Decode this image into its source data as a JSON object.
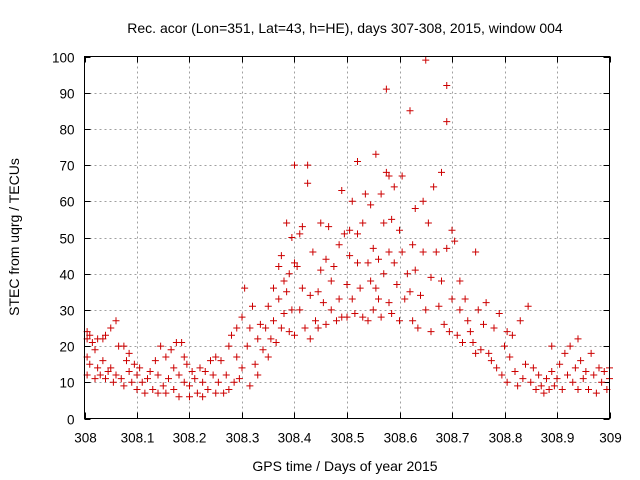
{
  "chart_data": {
    "type": "scatter",
    "title": "Rec. acor (Lon=351, Lat=43, h=HE), days 307-308, 2015, window 004",
    "xlabel": "GPS time / Days of year 2015",
    "ylabel": "STEC from uqrg / TECUs",
    "xlim": [
      308,
      309
    ],
    "ylim": [
      0,
      100
    ],
    "x_ticks": [
      308,
      308.1,
      308.2,
      308.3,
      308.4,
      308.5,
      308.6,
      308.7,
      308.8,
      308.9,
      309
    ],
    "x_tick_labels": [
      "308",
      "308.1",
      "308.2",
      "308.3",
      "308.4",
      "308.5",
      "308.6",
      "308.7",
      "308.8",
      "308.9",
      "309"
    ],
    "y_ticks": [
      0,
      10,
      20,
      30,
      40,
      50,
      60,
      70,
      80,
      90,
      100
    ],
    "y_tick_labels": [
      "0",
      "10",
      "20",
      "30",
      "40",
      "50",
      "60",
      "70",
      "80",
      "90",
      "100"
    ],
    "grid": true,
    "marker": "plus",
    "color": "#cc0000",
    "series": [
      {
        "name": "STEC",
        "points": [
          [
            308.005,
            24
          ],
          [
            308.005,
            22
          ],
          [
            308.005,
            17
          ],
          [
            308.005,
            12
          ],
          [
            308.01,
            23
          ],
          [
            308.01,
            15
          ],
          [
            308.015,
            21
          ],
          [
            308.02,
            19
          ],
          [
            308.02,
            11
          ],
          [
            308.025,
            22
          ],
          [
            308.025,
            14
          ],
          [
            308.03,
            12
          ],
          [
            308.035,
            22
          ],
          [
            308.035,
            16
          ],
          [
            308.04,
            23
          ],
          [
            308.04,
            11
          ],
          [
            308.045,
            13
          ],
          [
            308.05,
            25
          ],
          [
            308.05,
            14
          ],
          [
            308.055,
            10
          ],
          [
            308.06,
            27
          ],
          [
            308.06,
            12
          ],
          [
            308.065,
            20
          ],
          [
            308.07,
            11
          ],
          [
            308.075,
            20
          ],
          [
            308.075,
            9
          ],
          [
            308.08,
            16
          ],
          [
            308.085,
            18
          ],
          [
            308.085,
            13
          ],
          [
            308.09,
            10
          ],
          [
            308.095,
            15
          ],
          [
            308.1,
            12
          ],
          [
            308.1,
            8
          ],
          [
            308.105,
            14
          ],
          [
            308.11,
            10
          ],
          [
            308.115,
            7
          ],
          [
            308.12,
            11
          ],
          [
            308.125,
            13
          ],
          [
            308.13,
            8
          ],
          [
            308.135,
            16
          ],
          [
            308.14,
            12
          ],
          [
            308.14,
            7
          ],
          [
            308.145,
            20
          ],
          [
            308.15,
            9
          ],
          [
            308.155,
            17
          ],
          [
            308.155,
            7
          ],
          [
            308.16,
            11
          ],
          [
            308.165,
            19
          ],
          [
            308.17,
            14
          ],
          [
            308.17,
            8
          ],
          [
            308.175,
            21
          ],
          [
            308.18,
            12
          ],
          [
            308.18,
            6
          ],
          [
            308.185,
            21
          ],
          [
            308.19,
            17
          ],
          [
            308.19,
            10
          ],
          [
            308.195,
            15
          ],
          [
            308.2,
            9
          ],
          [
            308.2,
            6
          ],
          [
            308.205,
            13
          ],
          [
            308.21,
            11
          ],
          [
            308.215,
            7
          ],
          [
            308.22,
            14
          ],
          [
            308.225,
            10
          ],
          [
            308.225,
            6
          ],
          [
            308.23,
            13
          ],
          [
            308.235,
            8
          ],
          [
            308.24,
            16
          ],
          [
            308.245,
            12
          ],
          [
            308.25,
            7
          ],
          [
            308.25,
            17
          ],
          [
            308.255,
            10
          ],
          [
            308.26,
            16
          ],
          [
            308.265,
            7
          ],
          [
            308.27,
            12
          ],
          [
            308.275,
            20
          ],
          [
            308.275,
            8
          ],
          [
            308.28,
            23
          ],
          [
            308.285,
            10
          ],
          [
            308.29,
            25
          ],
          [
            308.29,
            17
          ],
          [
            308.295,
            11
          ],
          [
            308.3,
            28
          ],
          [
            308.3,
            14
          ],
          [
            308.305,
            36
          ],
          [
            308.31,
            20
          ],
          [
            308.315,
            9
          ],
          [
            308.315,
            25
          ],
          [
            308.32,
            31
          ],
          [
            308.325,
            15
          ],
          [
            308.33,
            22
          ],
          [
            308.33,
            12
          ],
          [
            308.335,
            26
          ],
          [
            308.34,
            19
          ],
          [
            308.345,
            25
          ],
          [
            308.35,
            17
          ],
          [
            308.35,
            31
          ],
          [
            308.355,
            22
          ],
          [
            308.36,
            36
          ],
          [
            308.36,
            27
          ],
          [
            308.365,
            21
          ],
          [
            308.37,
            42
          ],
          [
            308.37,
            33
          ],
          [
            308.375,
            45
          ],
          [
            308.375,
            25
          ],
          [
            308.38,
            38
          ],
          [
            308.38,
            29
          ],
          [
            308.385,
            54
          ],
          [
            308.385,
            35
          ],
          [
            308.39,
            40
          ],
          [
            308.39,
            24
          ],
          [
            308.395,
            50
          ],
          [
            308.395,
            30
          ],
          [
            308.4,
            70
          ],
          [
            308.4,
            43
          ],
          [
            308.4,
            23
          ],
          [
            308.405,
            42
          ],
          [
            308.41,
            51
          ],
          [
            308.41,
            30
          ],
          [
            308.415,
            53
          ],
          [
            308.415,
            36
          ],
          [
            308.42,
            25
          ],
          [
            308.425,
            70
          ],
          [
            308.425,
            65
          ],
          [
            308.43,
            34
          ],
          [
            308.43,
            22
          ],
          [
            308.435,
            46
          ],
          [
            308.44,
            27
          ],
          [
            308.445,
            35
          ],
          [
            308.445,
            25
          ],
          [
            308.45,
            54
          ],
          [
            308.45,
            41
          ],
          [
            308.455,
            32
          ],
          [
            308.46,
            44
          ],
          [
            308.46,
            26
          ],
          [
            308.465,
            53
          ],
          [
            308.47,
            30
          ],
          [
            308.47,
            38
          ],
          [
            308.475,
            42
          ],
          [
            308.48,
            27
          ],
          [
            308.485,
            48
          ],
          [
            308.485,
            33
          ],
          [
            308.49,
            63
          ],
          [
            308.49,
            28
          ],
          [
            308.495,
            51
          ],
          [
            308.5,
            37
          ],
          [
            308.5,
            28
          ],
          [
            308.505,
            52
          ],
          [
            308.505,
            45
          ],
          [
            308.51,
            60
          ],
          [
            308.51,
            33
          ],
          [
            308.515,
            29
          ],
          [
            308.52,
            71
          ],
          [
            308.52,
            51
          ],
          [
            308.52,
            43
          ],
          [
            308.525,
            36
          ],
          [
            308.53,
            54
          ],
          [
            308.53,
            28
          ],
          [
            308.535,
            62
          ],
          [
            308.54,
            43
          ],
          [
            308.54,
            27
          ],
          [
            308.545,
            59
          ],
          [
            308.545,
            38
          ],
          [
            308.55,
            47
          ],
          [
            308.55,
            30
          ],
          [
            308.555,
            73
          ],
          [
            308.555,
            36
          ],
          [
            308.56,
            44
          ],
          [
            308.56,
            33
          ],
          [
            308.565,
            62
          ],
          [
            308.565,
            28
          ],
          [
            308.57,
            54
          ],
          [
            308.57,
            40
          ],
          [
            308.575,
            91
          ],
          [
            308.575,
            68
          ],
          [
            308.58,
            67
          ],
          [
            308.58,
            46
          ],
          [
            308.58,
            32
          ],
          [
            308.585,
            55
          ],
          [
            308.585,
            29
          ],
          [
            308.59,
            64
          ],
          [
            308.59,
            43
          ],
          [
            308.595,
            37
          ],
          [
            308.6,
            52
          ],
          [
            308.6,
            27
          ],
          [
            308.605,
            67
          ],
          [
            308.605,
            46
          ],
          [
            308.61,
            33
          ],
          [
            308.615,
            40
          ],
          [
            308.62,
            85
          ],
          [
            308.62,
            35
          ],
          [
            308.625,
            48
          ],
          [
            308.625,
            27
          ],
          [
            308.63,
            58
          ],
          [
            308.63,
            41
          ],
          [
            308.635,
            25
          ],
          [
            308.64,
            34
          ],
          [
            308.645,
            60
          ],
          [
            308.645,
            46
          ],
          [
            308.65,
            99
          ],
          [
            308.65,
            30
          ],
          [
            308.655,
            54
          ],
          [
            308.66,
            39
          ],
          [
            308.66,
            24
          ],
          [
            308.665,
            64
          ],
          [
            308.67,
            46
          ],
          [
            308.675,
            31
          ],
          [
            308.68,
            68
          ],
          [
            308.68,
            38
          ],
          [
            308.685,
            26
          ],
          [
            308.69,
            92
          ],
          [
            308.69,
            82
          ],
          [
            308.69,
            47
          ],
          [
            308.695,
            24
          ],
          [
            308.7,
            52
          ],
          [
            308.7,
            33
          ],
          [
            308.705,
            49
          ],
          [
            308.71,
            23
          ],
          [
            308.715,
            38
          ],
          [
            308.715,
            30
          ],
          [
            308.72,
            21
          ],
          [
            308.725,
            33
          ],
          [
            308.73,
            27
          ],
          [
            308.735,
            24
          ],
          [
            308.74,
            21
          ],
          [
            308.745,
            46
          ],
          [
            308.745,
            18
          ],
          [
            308.75,
            30
          ],
          [
            308.755,
            19
          ],
          [
            308.76,
            26
          ],
          [
            308.765,
            32
          ],
          [
            308.77,
            18
          ],
          [
            308.775,
            16
          ],
          [
            308.78,
            25
          ],
          [
            308.785,
            14
          ],
          [
            308.79,
            29
          ],
          [
            308.795,
            12
          ],
          [
            308.8,
            20
          ],
          [
            308.805,
            24
          ],
          [
            308.805,
            10
          ],
          [
            308.81,
            17
          ],
          [
            308.815,
            23
          ],
          [
            308.82,
            13
          ],
          [
            308.825,
            9
          ],
          [
            308.83,
            27
          ],
          [
            308.835,
            11
          ],
          [
            308.84,
            15
          ],
          [
            308.845,
            31
          ],
          [
            308.85,
            10
          ],
          [
            308.855,
            14
          ],
          [
            308.86,
            8
          ],
          [
            308.865,
            12
          ],
          [
            308.87,
            9
          ],
          [
            308.875,
            7
          ],
          [
            308.88,
            11
          ],
          [
            308.885,
            8
          ],
          [
            308.89,
            20
          ],
          [
            308.89,
            13
          ],
          [
            308.895,
            9
          ],
          [
            308.9,
            11
          ],
          [
            308.905,
            15
          ],
          [
            308.91,
            8
          ],
          [
            308.915,
            18
          ],
          [
            308.92,
            12
          ],
          [
            308.925,
            20
          ],
          [
            308.93,
            10
          ],
          [
            308.935,
            14
          ],
          [
            308.94,
            22
          ],
          [
            308.94,
            8
          ],
          [
            308.945,
            16
          ],
          [
            308.95,
            11
          ],
          [
            308.955,
            13
          ],
          [
            308.96,
            8
          ],
          [
            308.965,
            18
          ],
          [
            308.97,
            12
          ],
          [
            308.975,
            7
          ],
          [
            308.98,
            14
          ],
          [
            308.985,
            10
          ],
          [
            308.99,
            13
          ],
          [
            308.995,
            8
          ],
          [
            309,
            14
          ],
          [
            309,
            11
          ]
        ]
      }
    ]
  }
}
